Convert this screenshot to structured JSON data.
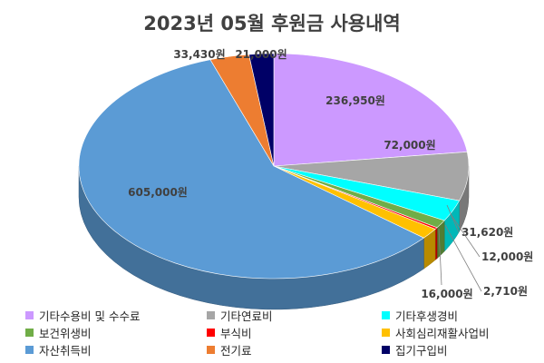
{
  "chart_data": {
    "type": "pie",
    "title": "2023년 05월 후원금 사용내역",
    "slices": [
      {
        "label": "기타수용비 및 수수료",
        "value": 236950,
        "value_label": "236,950원",
        "color": "#cc99ff"
      },
      {
        "label": "기타연료비",
        "value": 72000,
        "value_label": "72,000원",
        "color": "#a6a6a6"
      },
      {
        "label": "기타후생경비",
        "value": 31620,
        "value_label": "31,620원",
        "color": "#00ffff"
      },
      {
        "label": "보건위생비",
        "value": 12000,
        "value_label": "12,000원",
        "color": "#70ad47"
      },
      {
        "label": "부식비",
        "value": 2710,
        "value_label": "2,710원",
        "color": "#ff0000"
      },
      {
        "label": "사회심리재활사업비",
        "value": 16000,
        "value_label": "16,000원",
        "color": "#ffc000"
      },
      {
        "label": "자산취득비",
        "value": 605000,
        "value_label": "605,000원",
        "color": "#5b9bd5"
      },
      {
        "label": "전기료",
        "value": 33430,
        "value_label": "33,430원",
        "color": "#ed7d31"
      },
      {
        "label": "집기구입비",
        "value": 21000,
        "value_label": "21,000원",
        "color": "#000066"
      }
    ],
    "legend_position": "bottom"
  }
}
